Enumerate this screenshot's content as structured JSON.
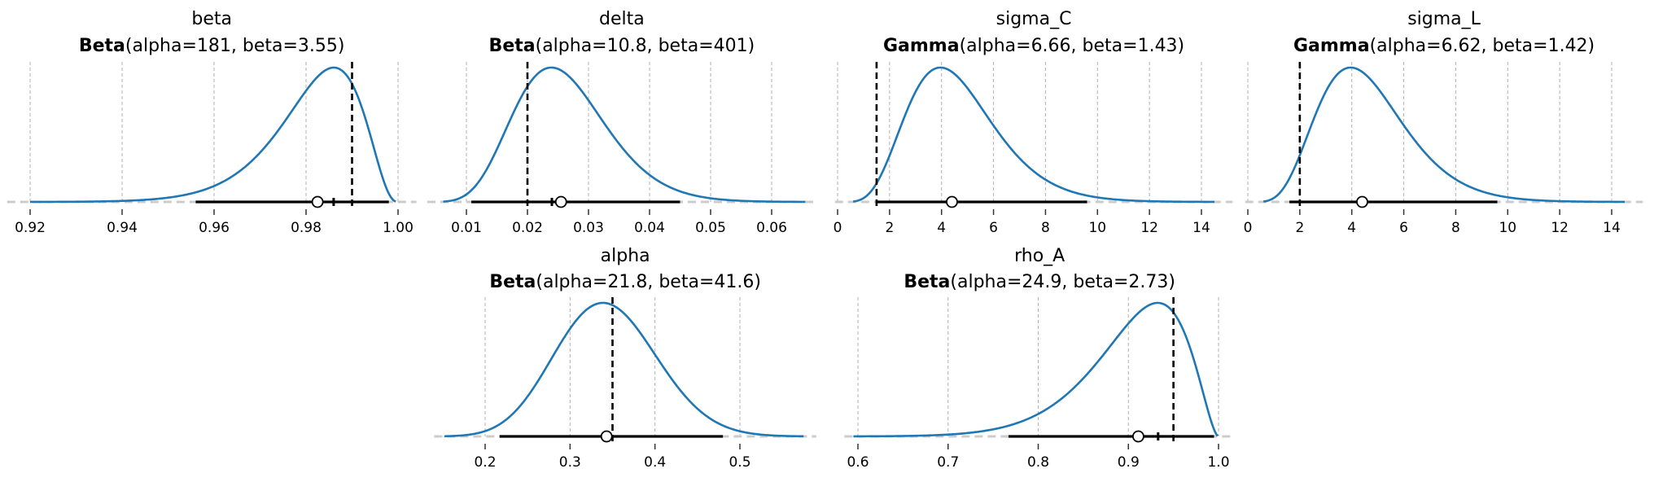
{
  "chart_data": [
    {
      "type": "line",
      "title": "beta",
      "distribution": {
        "family": "Beta",
        "label_params": "(alpha=181, beta=3.55)",
        "alpha": 181,
        "beta": 3.55
      },
      "xlim": [
        0.915,
        1.004
      ],
      "xticks": [
        0.92,
        0.94,
        0.96,
        0.98,
        1.0
      ],
      "xtick_labels": [
        "0.92",
        "0.94",
        "0.96",
        "0.98",
        "1.00"
      ],
      "curve_range": [
        0.92,
        0.9995
      ],
      "interval": [
        0.956,
        0.998
      ],
      "mean_marker": 0.9825,
      "median_tick": 0.986,
      "reference_line": 0.99,
      "grid": "x-dashed"
    },
    {
      "type": "line",
      "title": "delta",
      "distribution": {
        "family": "Beta",
        "label_params": "(alpha=10.8, beta=401)",
        "alpha": 10.8,
        "beta": 401
      },
      "xlim": [
        0.0036,
        0.0673
      ],
      "xticks": [
        0.01,
        0.02,
        0.03,
        0.04,
        0.05,
        0.06
      ],
      "xtick_labels": [
        "0.01",
        "0.02",
        "0.03",
        "0.04",
        "0.05",
        "0.06"
      ],
      "curve_range": [
        0.0062,
        0.0655
      ],
      "interval": [
        0.0108,
        0.045
      ],
      "mean_marker": 0.0255,
      "median_tick": 0.024,
      "reference_line": 0.02,
      "grid": "x-dashed"
    },
    {
      "type": "line",
      "title": "sigma_C",
      "distribution": {
        "family": "Gamma",
        "label_params": "(alpha=6.66, beta=1.43)",
        "alpha": 6.66,
        "beta": 1.43
      },
      "xlim": [
        -0.1,
        15.2
      ],
      "xticks": [
        0,
        2,
        4,
        6,
        8,
        10,
        12,
        14
      ],
      "xtick_labels": [
        "0",
        "2",
        "4",
        "6",
        "8",
        "10",
        "12",
        "14"
      ],
      "curve_range": [
        0.6,
        14.5
      ],
      "interval": [
        1.5,
        9.6
      ],
      "mean_marker": 4.4,
      "median_tick": null,
      "reference_line": 1.5,
      "grid": "x-dashed"
    },
    {
      "type": "line",
      "title": "sigma_L",
      "distribution": {
        "family": "Gamma",
        "label_params": "(alpha=6.62, beta=1.42)",
        "alpha": 6.62,
        "beta": 1.42
      },
      "xlim": [
        -0.1,
        15.2
      ],
      "xticks": [
        0,
        2,
        4,
        6,
        8,
        10,
        12,
        14
      ],
      "xtick_labels": [
        "0",
        "2",
        "4",
        "6",
        "8",
        "10",
        "12",
        "14"
      ],
      "curve_range": [
        0.6,
        14.5
      ],
      "interval": [
        1.6,
        9.6
      ],
      "mean_marker": 4.4,
      "median_tick": null,
      "reference_line": 2.0,
      "grid": "x-dashed"
    },
    {
      "type": "line",
      "title": "alpha",
      "distribution": {
        "family": "Beta",
        "label_params": "(alpha=21.8, beta=41.6)",
        "alpha": 21.8,
        "beta": 41.6
      },
      "xlim": [
        0.14,
        0.59
      ],
      "xticks": [
        0.2,
        0.3,
        0.4,
        0.5
      ],
      "xtick_labels": [
        "0.2",
        "0.3",
        "0.4",
        "0.5"
      ],
      "curve_range": [
        0.152,
        0.575
      ],
      "interval": [
        0.217,
        0.48
      ],
      "mean_marker": 0.343,
      "median_tick": null,
      "reference_line": 0.35,
      "grid": "x-dashed"
    },
    {
      "type": "line",
      "title": "rho_A",
      "distribution": {
        "family": "Beta",
        "label_params": "(alpha=24.9, beta=2.73)",
        "alpha": 24.9,
        "beta": 2.73
      },
      "xlim": [
        0.585,
        1.018
      ],
      "xticks": [
        0.6,
        0.7,
        0.8,
        0.9,
        1.0
      ],
      "xtick_labels": [
        "0.6",
        "0.7",
        "0.8",
        "0.9",
        "1.0"
      ],
      "curve_range": [
        0.595,
        0.999
      ],
      "interval": [
        0.767,
        0.995
      ],
      "mean_marker": 0.911,
      "median_tick": 0.933,
      "reference_line": 0.95,
      "grid": "x-dashed"
    }
  ],
  "colors": {
    "curve": "#1f77b4",
    "interval": "#000000",
    "reference": "#000000",
    "grid": "#b0b0b0",
    "baseline": "#cccccc"
  }
}
